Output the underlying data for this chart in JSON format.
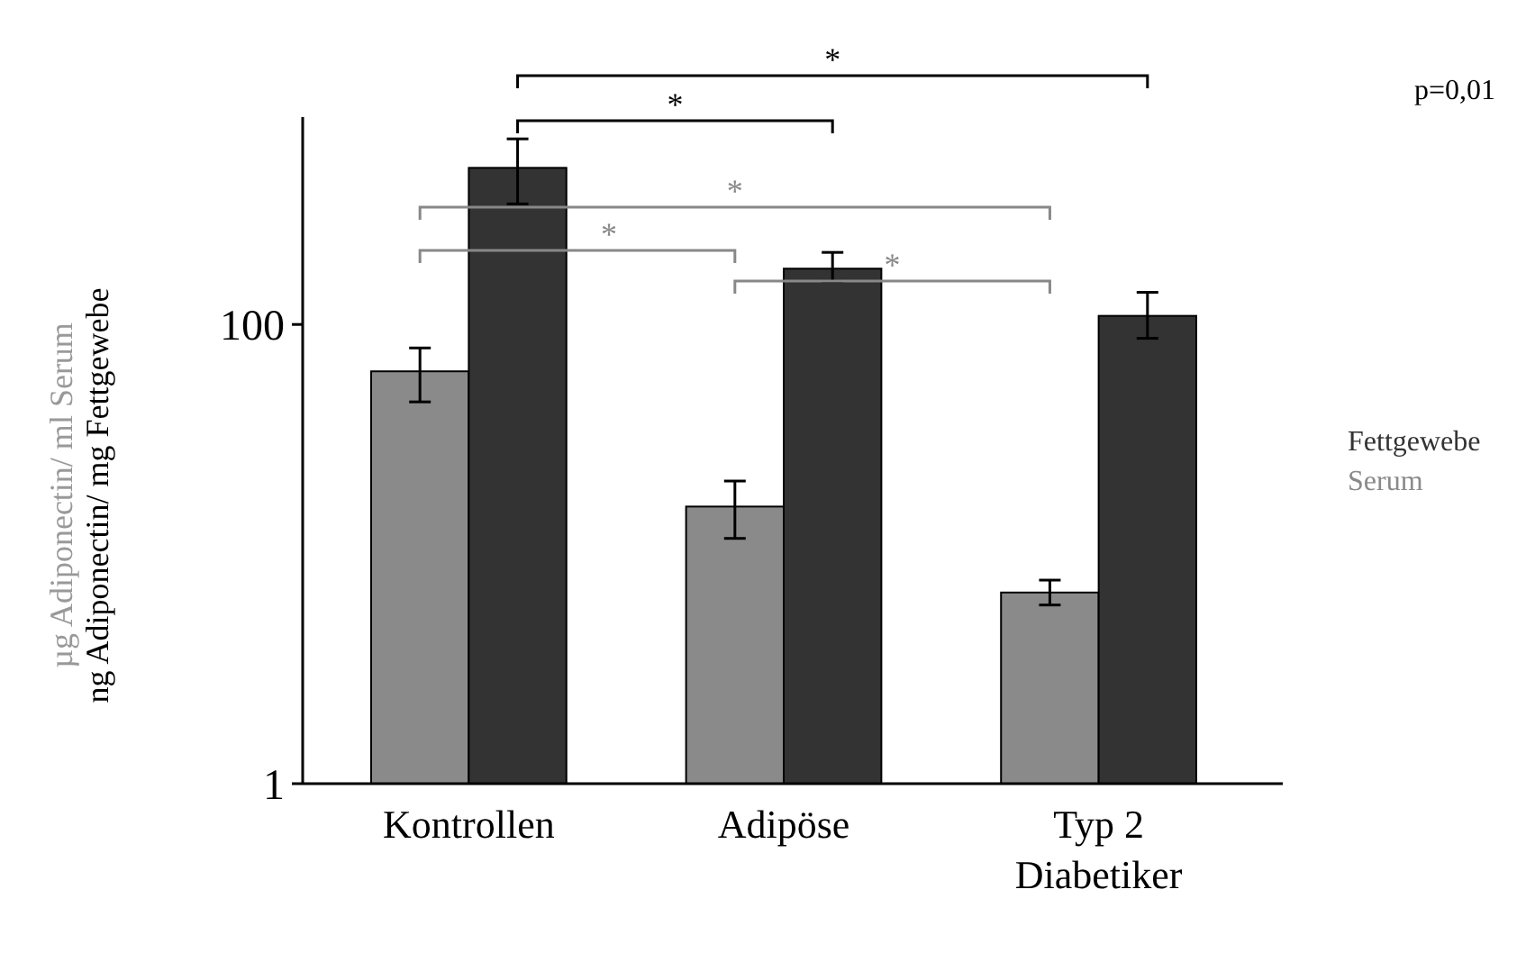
{
  "chart_data": {
    "type": "bar",
    "categories": [
      "Kontrollen",
      "Adipöse",
      "Typ 2 Diabetiker"
    ],
    "series": [
      {
        "name": "Serum",
        "color": "#8a8a8a",
        "values": [
          62.5,
          16.1,
          6.8
        ],
        "errors": [
          [
            46,
            79
          ],
          [
            11.7,
            20.8
          ],
          [
            6.0,
            7.7
          ]
        ]
      },
      {
        "name": "Fettgewebe",
        "color": "#333333",
        "values": [
          481,
          175,
          109
        ],
        "errors": [
          [
            335,
            643
          ],
          [
            154,
            206
          ],
          [
            87,
            138
          ]
        ]
      }
    ],
    "ylabel": "ng Adiponectin/ mg Fettgewebe",
    "log": true,
    "ylim": [
      1,
      800
    ],
    "yticks": [
      1,
      100
    ],
    "grid": false,
    "legend": "right",
    "annotations": [
      "*",
      "*",
      "*",
      "*",
      "*",
      "p=0,01",
      "µg Adiponectin/ ml Serum"
    ]
  }
}
